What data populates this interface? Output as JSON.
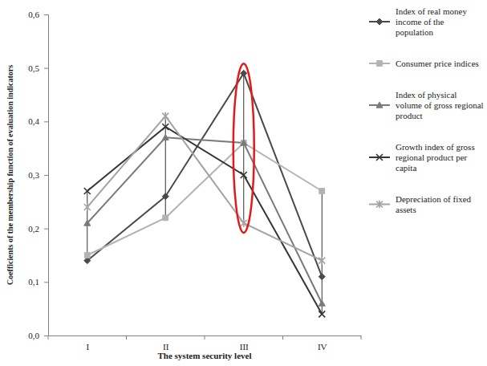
{
  "chart_data": {
    "type": "line",
    "x_label": "The system security level",
    "y_label": "Coefficients of the membership function of evaluation indicators",
    "categories": [
      "I",
      "II",
      "III",
      "IV"
    ],
    "series": [
      {
        "name": "Index of real money income of the population",
        "color": "#4a4a4a",
        "marker": "diamond",
        "line_style": "solid",
        "values": [
          0.14,
          0.26,
          0.49,
          0.11
        ]
      },
      {
        "name": "Consumer price indices",
        "color": "#b3b3b3",
        "marker": "square",
        "line_style": "solid",
        "values": [
          0.15,
          0.22,
          0.36,
          0.27
        ]
      },
      {
        "name": "Index of physical volume of gross regional product",
        "color": "#7a7a7a",
        "marker": "triangle",
        "line_style": "solid",
        "values": [
          0.21,
          0.37,
          0.36,
          0.06
        ]
      },
      {
        "name": "Growth index of gross regional product per capita",
        "color": "#353535",
        "marker": "x",
        "line_style": "solid",
        "values": [
          0.27,
          0.39,
          0.3,
          0.04
        ]
      },
      {
        "name": "Depreciation of fixed assets",
        "color": "#a3a3a3",
        "marker": "star",
        "line_style": "solid",
        "values": [
          0.24,
          0.41,
          0.21,
          0.14
        ]
      }
    ],
    "ylim": [
      0,
      0.6
    ],
    "yticks": [
      {
        "value": 0,
        "label": "0,0"
      },
      {
        "value": 0.1,
        "label": "0,1"
      },
      {
        "value": 0.2,
        "label": "0,2"
      },
      {
        "value": 0.3,
        "label": "0,3"
      },
      {
        "value": 0.4,
        "label": "0,4"
      },
      {
        "value": 0.5,
        "label": "0,5"
      },
      {
        "value": 0.6,
        "label": "0,6"
      }
    ],
    "grid": false,
    "legend": "right"
  }
}
